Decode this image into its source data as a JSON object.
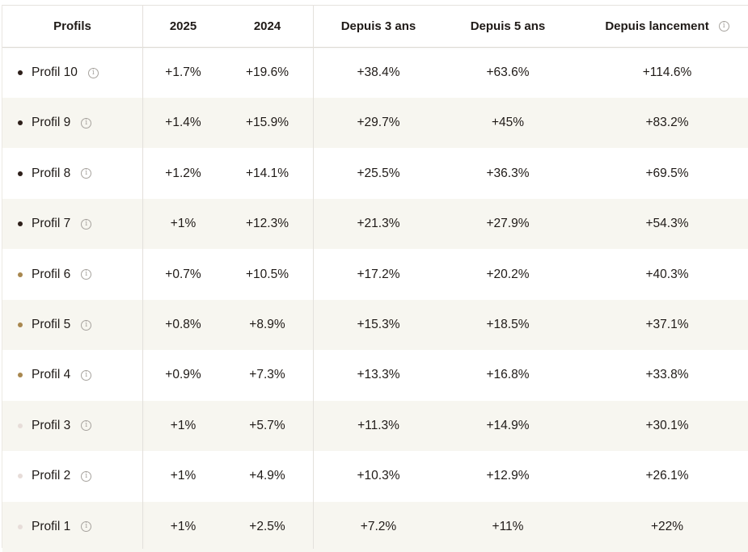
{
  "table": {
    "headers": [
      "Profils",
      "2025",
      "2024",
      "Depuis 3 ans",
      "Depuis 5 ans",
      "Depuis lancement"
    ],
    "info_icon_glyph": "i",
    "rows": [
      {
        "profile": "Profil 10",
        "dot_color": "#2d1f1a",
        "v2025": "+1.7%",
        "v2024": "+19.6%",
        "y3": "+38.4%",
        "y5": "+63.6%",
        "launch": "+114.6%"
      },
      {
        "profile": "Profil 9",
        "dot_color": "#2d1f1a",
        "v2025": "+1.4%",
        "v2024": "+15.9%",
        "y3": "+29.7%",
        "y5": "+45%",
        "launch": "+83.2%"
      },
      {
        "profile": "Profil 8",
        "dot_color": "#2d1f1a",
        "v2025": "+1.2%",
        "v2024": "+14.1%",
        "y3": "+25.5%",
        "y5": "+36.3%",
        "launch": "+69.5%"
      },
      {
        "profile": "Profil 7",
        "dot_color": "#2d1f1a",
        "v2025": "+1%",
        "v2024": "+12.3%",
        "y3": "+21.3%",
        "y5": "+27.9%",
        "launch": "+54.3%"
      },
      {
        "profile": "Profil 6",
        "dot_color": "#a8874f",
        "v2025": "+0.7%",
        "v2024": "+10.5%",
        "y3": "+17.2%",
        "y5": "+20.2%",
        "launch": "+40.3%"
      },
      {
        "profile": "Profil 5",
        "dot_color": "#a8874f",
        "v2025": "+0.8%",
        "v2024": "+8.9%",
        "y3": "+15.3%",
        "y5": "+18.5%",
        "launch": "+37.1%"
      },
      {
        "profile": "Profil 4",
        "dot_color": "#a8874f",
        "v2025": "+0.9%",
        "v2024": "+7.3%",
        "y3": "+13.3%",
        "y5": "+16.8%",
        "launch": "+33.8%"
      },
      {
        "profile": "Profil 3",
        "dot_color": "#e7ddd9",
        "v2025": "+1%",
        "v2024": "+5.7%",
        "y3": "+11.3%",
        "y5": "+14.9%",
        "launch": "+30.1%"
      },
      {
        "profile": "Profil 2",
        "dot_color": "#e7ddd9",
        "v2025": "+1%",
        "v2024": "+4.9%",
        "y3": "+10.3%",
        "y5": "+12.9%",
        "launch": "+26.1%"
      },
      {
        "profile": "Profil 1",
        "dot_color": "#e7ddd9",
        "v2025": "+1%",
        "v2024": "+2.5%",
        "y3": "+7.2%",
        "y5": "+11%",
        "launch": "+22%"
      }
    ]
  },
  "colors": {
    "row_shade": "#f7f6f0",
    "text": "#1f1a17",
    "dot_dark": "#2d1f1a",
    "dot_gold": "#a8874f",
    "dot_light": "#e7ddd9"
  }
}
